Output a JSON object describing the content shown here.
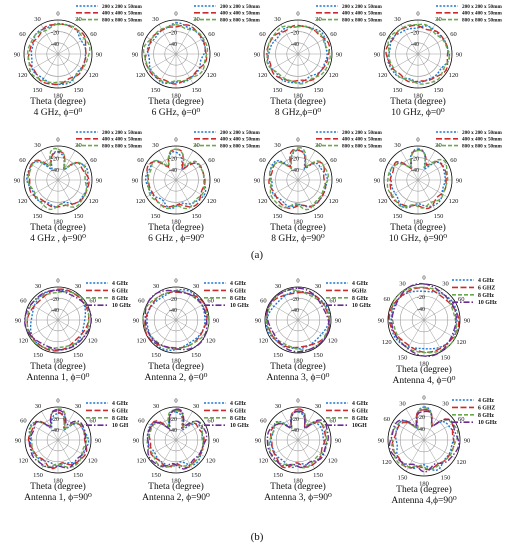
{
  "part_labels": [
    "(a)",
    "(b)"
  ],
  "legend_a": [
    "200 x 200 x 50mm",
    "400 x 400 x 50mm",
    "800 x 800 x 50mm"
  ],
  "legend_b_variants": [
    [
      "4 GHz",
      "6 GHz",
      "8 GHz",
      "10 GHz"
    ],
    [
      "4 GHz",
      "6 GHz",
      "8 GHz",
      "10 GHz"
    ],
    [
      "4 GHz",
      "6GHz",
      "8 GHz",
      "10 GHz"
    ],
    [
      "4 GHz",
      "6 GHZ",
      "8 GHz",
      "10 GHz"
    ],
    [
      "4 GHz",
      "6 GHz",
      "8 GHz",
      "10 GH"
    ],
    [
      "4 GHz",
      "6 GHz",
      "8 GHz",
      "10 GHz"
    ],
    [
      "4 GHz",
      "6 GHz",
      "8 GHz",
      "10GH"
    ],
    [
      "4 GHz",
      "6 GHZ",
      "8 GHz",
      "10 GHz"
    ]
  ],
  "colors": {
    "s1": "#1f77d4",
    "s2": "#cc2b2b",
    "s3": "#6aa84f",
    "s4": "#6a2c91",
    "axis": "#111111",
    "grid": "#9a9a9a"
  },
  "polar_axis": {
    "angle_ticks": [
      "0",
      "30",
      "60",
      "90",
      "120",
      "150",
      "180"
    ],
    "radial_ticks": [
      "-20",
      "-40"
    ]
  },
  "chart_data": [
    {
      "type": "polar",
      "panel": "a",
      "xlabel": "Theta (degree)",
      "caption": "4 GHz, ϕ=0⁰"
    },
    {
      "type": "polar",
      "panel": "a",
      "xlabel": "Theta (degree)",
      "caption": "6 GHz, ϕ=0⁰"
    },
    {
      "type": "polar",
      "panel": "a",
      "xlabel": "Theta (degree)",
      "caption": "8 GHz,ϕ=0⁰"
    },
    {
      "type": "polar",
      "panel": "a",
      "xlabel": "Theta (degree)",
      "caption": "10 GHz, ϕ=0⁰"
    },
    {
      "type": "polar",
      "panel": "a",
      "xlabel": "Theta (degree)",
      "caption": "4 GHz , ϕ=90⁰"
    },
    {
      "type": "polar",
      "panel": "a",
      "xlabel": "Theta (degree)",
      "caption": "6 GHz , ϕ=90⁰"
    },
    {
      "type": "polar",
      "panel": "a",
      "xlabel": "Theta (degree)",
      "caption": "8 GHz, ϕ=90⁰"
    },
    {
      "type": "polar",
      "panel": "a",
      "xlabel": "Theta (degree)",
      "caption": "10 GHz, ϕ=90⁰"
    },
    {
      "type": "polar",
      "panel": "b",
      "xlabel": "Theta (degree)",
      "caption": "Antenna 1, ϕ=0⁰"
    },
    {
      "type": "polar",
      "panel": "b",
      "xlabel": "Theta (degree)",
      "caption": "Antenna 2, ϕ=0⁰"
    },
    {
      "type": "polar",
      "panel": "b",
      "xlabel": "Theta (degree)",
      "caption": "Antenna 3, ϕ=0⁰"
    },
    {
      "type": "polar",
      "panel": "b",
      "xlabel": "Theta (degree)",
      "caption": "Antenna 4, ϕ=0⁰"
    },
    {
      "type": "polar",
      "panel": "b",
      "xlabel": "Theta (degree)",
      "caption": "Antenna 1, ϕ=90⁰"
    },
    {
      "type": "polar",
      "panel": "b",
      "xlabel": "Theta (degree)",
      "caption": "Antenna 2, ϕ=90⁰"
    },
    {
      "type": "polar",
      "panel": "b",
      "xlabel": "Theta (degree)",
      "caption": "Antenna 3, ϕ=90⁰"
    },
    {
      "type": "polar",
      "panel": "b",
      "xlabel": "Theta (degree)",
      "caption": "Antenna 4,ϕ=90⁰"
    }
  ]
}
